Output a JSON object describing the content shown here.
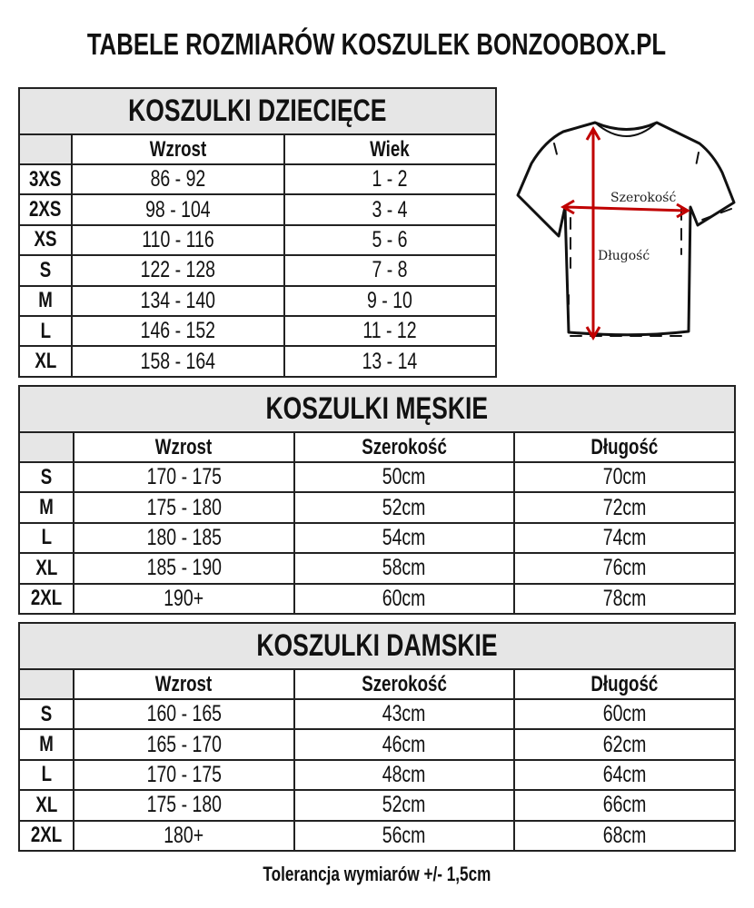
{
  "title": "TABELE ROZMIARÓW KOSZULEK BONZOOBOX.PL",
  "kids": {
    "title": "KOSZULKI DZIECIĘCE",
    "headers": [
      "Wzrost",
      "Wiek"
    ],
    "rows": [
      [
        "3XS",
        "86 - 92",
        "1 - 2"
      ],
      [
        "2XS",
        "98 - 104",
        "3 - 4"
      ],
      [
        "XS",
        "110 - 116",
        "5 - 6"
      ],
      [
        "S",
        "122 - 128",
        "7 - 8"
      ],
      [
        "M",
        "134 - 140",
        "9 - 10"
      ],
      [
        "L",
        "146 - 152",
        "11 - 12"
      ],
      [
        "XL",
        "158 - 164",
        "13 - 14"
      ]
    ]
  },
  "men": {
    "title": "KOSZULKI MĘSKIE",
    "headers": [
      "Wzrost",
      "Szerokość",
      "Długość"
    ],
    "rows": [
      [
        "S",
        "170 - 175",
        "50cm",
        "70cm"
      ],
      [
        "M",
        "175 - 180",
        "52cm",
        "72cm"
      ],
      [
        "L",
        "180 - 185",
        "54cm",
        "74cm"
      ],
      [
        "XL",
        "185 - 190",
        "58cm",
        "76cm"
      ],
      [
        "2XL",
        "190+",
        "60cm",
        "78cm"
      ]
    ]
  },
  "women": {
    "title": "KOSZULKI DAMSKIE",
    "headers": [
      "Wzrost",
      "Szerokość",
      "Długość"
    ],
    "rows": [
      [
        "S",
        "160 - 165",
        "43cm",
        "60cm"
      ],
      [
        "M",
        "165 - 170",
        "46cm",
        "62cm"
      ],
      [
        "L",
        "170 - 175",
        "48cm",
        "64cm"
      ],
      [
        "XL",
        "175 - 180",
        "52cm",
        "66cm"
      ],
      [
        "2XL",
        "180+",
        "56cm",
        "68cm"
      ]
    ]
  },
  "diagram": {
    "width_label": "Szerokość",
    "length_label": "Długość",
    "arrow_color": "#c00000"
  },
  "footer": "Tolerancja wymiarów +/- 1,5cm"
}
